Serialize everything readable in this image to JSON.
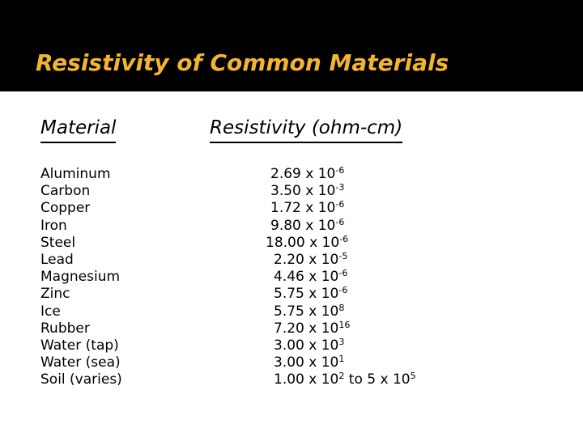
{
  "slide": {
    "title": "Resistivity of Common Materials",
    "colors": {
      "title_bar": "#000000",
      "title_text": "#f2b431",
      "body_text": "#000000",
      "background": "#ffffff"
    }
  },
  "table": {
    "headers": {
      "material": "Material",
      "resistivity": "Resistivity (ohm-cm)"
    },
    "rows": [
      {
        "material": "Aluminum",
        "mantissa": "2.69",
        "times": "x",
        "base": "10",
        "exponent": "-6"
      },
      {
        "material": "Carbon",
        "mantissa": "3.50",
        "times": "x",
        "base": "10",
        "exponent": "-3"
      },
      {
        "material": "Copper",
        "mantissa": "1.72",
        "times": "x",
        "base": "10",
        "exponent": "-6"
      },
      {
        "material": "Iron",
        "mantissa": "9.80",
        "times": "x",
        "base": "10",
        "exponent": "-6"
      },
      {
        "material": "Steel",
        "mantissa": "18.00",
        "times": "x",
        "base": "10",
        "exponent": "-6"
      },
      {
        "material": "Lead",
        "mantissa": "2.20",
        "times": "x",
        "base": "10",
        "exponent": "-5"
      },
      {
        "material": "Magnesium",
        "mantissa": "4.46",
        "times": "x",
        "base": "10",
        "exponent": "-6"
      },
      {
        "material": "Zinc",
        "mantissa": "5.75",
        "times": "x",
        "base": "10",
        "exponent": "-6"
      },
      {
        "material": "Ice",
        "mantissa": "5.75",
        "times": "x",
        "base": "10",
        "exponent": "8"
      },
      {
        "material": "Rubber",
        "mantissa": "7.20",
        "times": "x",
        "base": "10",
        "exponent": "16"
      },
      {
        "material": "Water (tap)",
        "mantissa": "3.00",
        "times": "x",
        "base": "10",
        "exponent": "3"
      },
      {
        "material": "Water (sea)",
        "mantissa": "3.00",
        "times": "x",
        "base": "10",
        "exponent": "1"
      },
      {
        "material": "Soil (varies)",
        "mantissa": "1.00",
        "times": "x",
        "base": "10",
        "exponent": "2",
        "range_word": "to",
        "range_mantissa": "5",
        "range_times": "x",
        "range_base": "10",
        "range_exponent": "5"
      }
    ]
  }
}
